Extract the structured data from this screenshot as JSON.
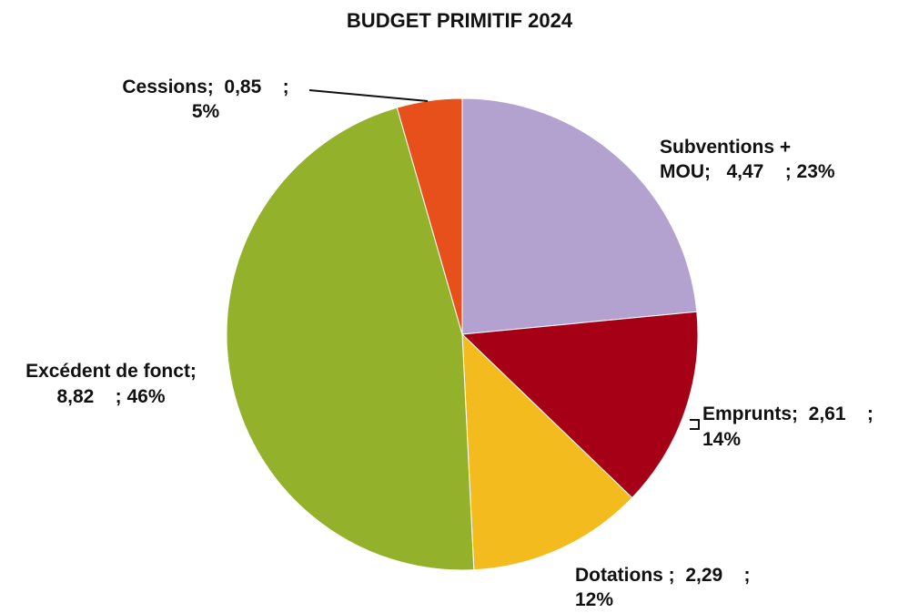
{
  "chart_data": {
    "type": "pie",
    "title": "BUDGET PRIMITIF 2024",
    "start_angle_deg": 0,
    "direction": "clockwise",
    "slices": [
      {
        "key": "subventions",
        "category": "Subventions + MOU",
        "value": 4.47,
        "percent": 23,
        "color": "#b3a2cf",
        "label_lines": [
          "Subventions +",
          "MOU;   4,47    ; 23%"
        ]
      },
      {
        "key": "emprunts",
        "category": "Emprunts",
        "value": 2.61,
        "percent": 14,
        "color": "#a50016",
        "label_lines": [
          "Emprunts;  2,61    ;",
          "14%"
        ]
      },
      {
        "key": "dotations",
        "category": "Dotations",
        "value": 2.29,
        "percent": 12,
        "color": "#f4bb1f",
        "label_lines": [
          "Dotations ;  2,29    ;",
          "12%"
        ]
      },
      {
        "key": "excedent",
        "category": "Excédent de fonct",
        "value": 8.82,
        "percent": 46,
        "color": "#93b12a",
        "label_lines": [
          "Excédent de fonct;",
          "8,82    ; 46%"
        ]
      },
      {
        "key": "cessions",
        "category": "Cessions",
        "value": 0.85,
        "percent": 5,
        "color": "#e8501b",
        "label_lines": [
          "Cessions;  0,85    ;",
          "5%"
        ]
      }
    ]
  }
}
